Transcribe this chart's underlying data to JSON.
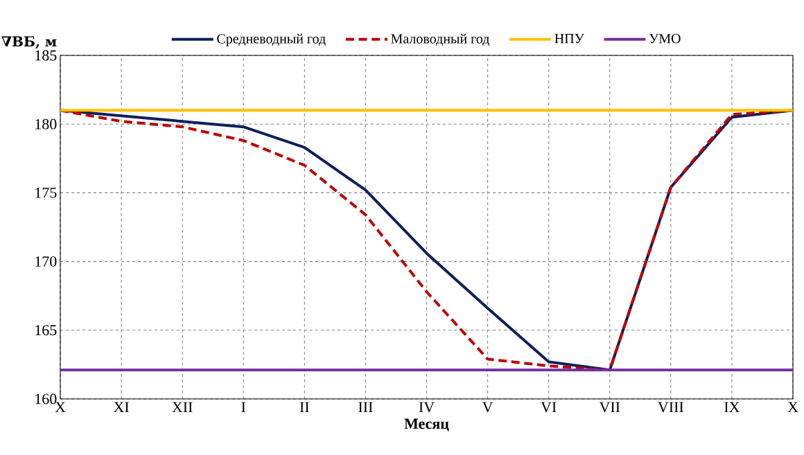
{
  "chart_data": {
    "type": "line",
    "xlabel": "Месяц",
    "ylabel": "∇ВБ, м",
    "categories": [
      "X",
      "XI",
      "XII",
      "I",
      "II",
      "III",
      "IV",
      "V",
      "VI",
      "VII",
      "VIII",
      "IX",
      "X"
    ],
    "ylim": [
      160,
      185
    ],
    "yticks": [
      160,
      165,
      170,
      175,
      180,
      185
    ],
    "grid": true,
    "legend": "top",
    "series": [
      {
        "name": "Средневодный год",
        "color": "#0d1f5c",
        "line_style": "solid",
        "values": [
          181,
          180.6,
          180.2,
          179.8,
          178.3,
          175.2,
          170.6,
          166.6,
          162.7,
          162.1,
          175.4,
          180.5,
          181
        ]
      },
      {
        "name": "Маловодный год",
        "color": "#c00000",
        "line_style": "dashed",
        "values": [
          181,
          180.2,
          179.8,
          178.8,
          177.0,
          173.4,
          167.8,
          162.9,
          162.4,
          162.1,
          175.4,
          180.7,
          181
        ]
      },
      {
        "name": "НПУ",
        "color": "#ffc000",
        "line_style": "solid",
        "values": [
          181,
          181,
          181,
          181,
          181,
          181,
          181,
          181,
          181,
          181,
          181,
          181,
          181
        ]
      },
      {
        "name": "УМО",
        "color": "#7030a0",
        "line_style": "solid",
        "values": [
          162.1,
          162.1,
          162.1,
          162.1,
          162.1,
          162.1,
          162.1,
          162.1,
          162.1,
          162.1,
          162.1,
          162.1,
          162.1
        ]
      }
    ]
  }
}
